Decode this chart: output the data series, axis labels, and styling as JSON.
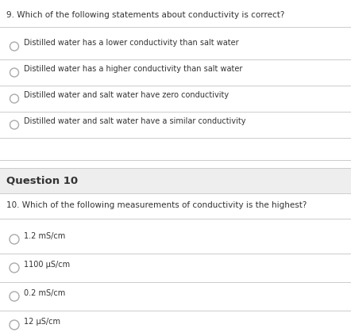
{
  "bg_color": "#ffffff",
  "section_bg_color": "#eeeeee",
  "line_color": "#cccccc",
  "text_color": "#333333",
  "circle_edge_color": "#aaaaaa",
  "q9_title": "9. Which of the following statements about conductivity is correct?",
  "q9_options": [
    "Distilled water has a lower conductivity than salt water",
    "Distilled water has a higher conductivity than salt water",
    "Distilled water and salt water have zero conductivity",
    "Distilled water and salt water have a similar conductivity"
  ],
  "q10_header": "Question 10",
  "q10_title": "10. Which of the following measurements of conductivity is the highest?",
  "q10_options": [
    "1.2 mS/cm",
    "1100 μS/cm",
    "0.2 mS/cm",
    "12 μS/cm"
  ],
  "figsize": [
    4.42,
    4.19
  ],
  "dpi": 100
}
